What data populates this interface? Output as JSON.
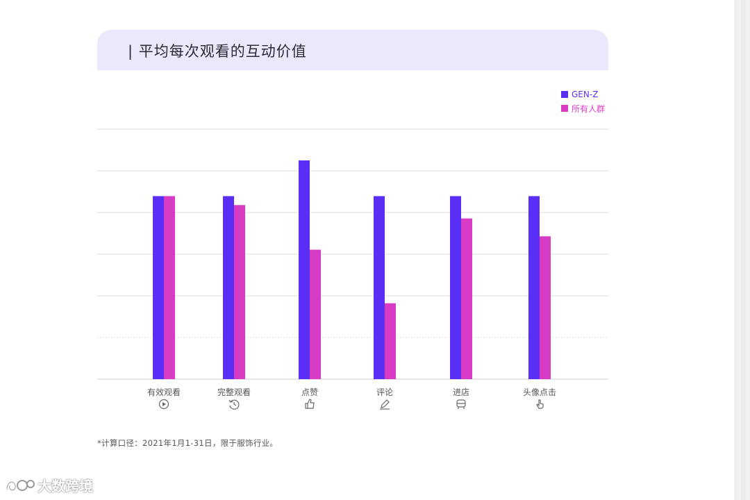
{
  "page": {
    "title": "平均每次观看的互动价值",
    "title_prefix": "|",
    "footnote": "*计算口径：2021年1月1-31日，限于服饰行业。",
    "brand": "大数跨境"
  },
  "colors": {
    "genz": "#5b2ef5",
    "all": "#d93cc4",
    "title_bg": "#ebe8fb",
    "grid": "#dddddd"
  },
  "chart_data": {
    "type": "bar",
    "title": "平均每次观看的互动价值",
    "xlabel": "",
    "ylabel": "",
    "categories": [
      "有效观看",
      "完整观看",
      "点赞",
      "评论",
      "进店",
      "头像点击"
    ],
    "category_icons": [
      "play-circle-icon",
      "history-icon",
      "thumbs-up-icon",
      "pencil-icon",
      "store-icon",
      "hand-pointer-icon"
    ],
    "series": [
      {
        "name": "GEN-Z",
        "values": [
          4.1,
          4.1,
          4.9,
          4.1,
          4.1,
          4.1
        ]
      },
      {
        "name": "所有人群",
        "values": [
          4.1,
          3.9,
          2.9,
          1.7,
          3.6,
          3.2
        ]
      }
    ],
    "ylim": [
      0,
      5.6
    ],
    "grid": true,
    "y_ticks_visible": false,
    "legend_position": "top-right"
  }
}
